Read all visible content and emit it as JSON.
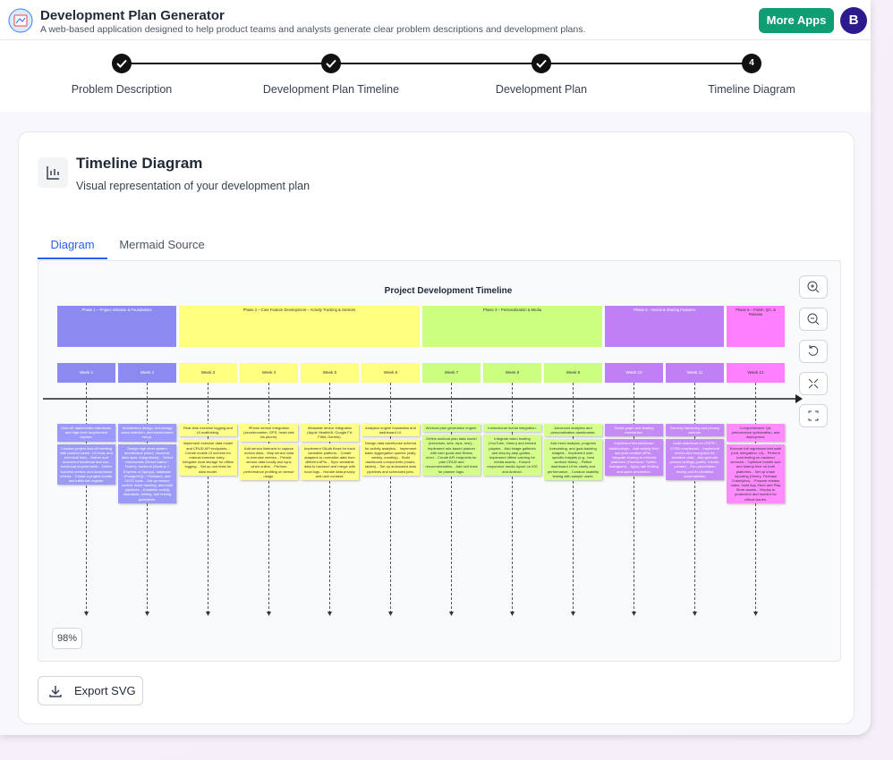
{
  "header": {
    "title": "Development Plan Generator",
    "subtitle": "A web-based application designed to help product teams and analysts generate clear problem descriptions and development plans.",
    "button": "More Apps",
    "avatar": "B"
  },
  "steps": [
    {
      "label": "Problem Description"
    },
    {
      "label": "Development Plan Timeline"
    },
    {
      "label": "Development Plan"
    },
    {
      "number": "4",
      "label": "Timeline Diagram"
    }
  ],
  "card": {
    "title": "Timeline Diagram",
    "subtitle": "Visual representation of your development plan",
    "tabs": [
      "Diagram",
      "Mermaid Source"
    ],
    "zoom": "98%",
    "export": "Export SVG"
  },
  "diagram": {
    "title": "Project Development Timeline",
    "phases": [
      {
        "label": "Phase 1 – Project Initiation & Foundations",
        "color": "#8a8af0",
        "card_color": "#9b9bf7",
        "text_color": "#ffffff",
        "weeks": [
          {
            "label": "Week 1",
            "tasks": [
              "Kick-off, stakeholder interviews, and high-level requirement capture.",
              "Conduct project kick-off meeting with product owner, UX lead, and technical lead... Gather and document functional and non-functional requirements... Define success metrics and acceptance criteria... Create a project charter and initial risk register."
            ]
          },
          {
            "label": "Week 2",
            "tasks": [
              "Architecture design, technology stack selection, and environment setup.",
              "Design high-level system architecture (client, backend, data layer, integrations)... Select frameworks (React Native / Flutter), backend (Node.js + Express or Django), database (PostgreSQL / Firebase), and CI/CD tools... Set up version control, issue tracking, and build pipelines... Establish coding standards, testing, and testing guidelines."
            ]
          }
        ]
      },
      {
        "label": "Phase 2 – Core Feature Development – Activity Tracking & Sensors",
        "color": "#ffff80",
        "card_color": "#ffff88",
        "text_color": "#333333",
        "weeks": [
          {
            "label": "Week 3",
            "tasks": [
              "Real-time exercise logging and UI scaffolding.",
              "Implement exercise data model and CRUD API endpoints... Create mobile UI screens for manual exercise entry... Integrate local storage for offline logging... Set up unit tests for data model."
            ]
          },
          {
            "label": "Week 4",
            "tasks": [
              "iPhone sensor integration (accelerometer, GPS, heart-rate via phone).",
              "Add sensor listeners to capture motion data... Map sensor data to exercise metrics... Persist sensor data locally and sync when online... Perform performance profiling on sensor usage."
            ]
          },
          {
            "label": "Week 5",
            "tasks": [
              "Wearable device integration (Apple HealthKit, Google Fit, Fitbit, Garmin).",
              "Implement OAuth flows for each wearable platform... Create adapters to normalize data from different APIs... Sync wearable data to backend and merge with local logs... Handle data privacy and user consent."
            ]
          },
          {
            "label": "Week 6",
            "tasks": [
              "Analytics engine foundation and dashboard UI.",
              "Design data warehouse schema for activity analytics... Implement basic aggregation queries (daily, weekly, monthly)... Build dashboard components (charts, tables)... Set up automated data pipelines and scheduled jobs."
            ]
          }
        ]
      },
      {
        "label": "Phase 3 – Personalization & Media",
        "color": "#ccff80",
        "card_color": "#d4ff8c",
        "text_color": "#333333",
        "weeks": [
          {
            "label": "Week 7",
            "tasks": [
              "Workout plan generation engine.",
              "Define workout plan data model (exercises, sets, reps, rest)... Implement rule-based planner with user goals and fitness level... Create API endpoints for plan CRUD and recommendation... Add unit tests for planner logic."
            ]
          },
          {
            "label": "Week 8",
            "tasks": [
              "Instructional media integration.",
              "Integrate video hosting (YouTube, Vimeo) and embed players... Add image galleries and step-by-step guides... Implement offline caching for media assets... Ensure responsive media layout on iOS and Android."
            ]
          },
          {
            "label": "Week 9",
            "tasks": [
              "Advanced analytics and personalization dashboards.",
              "Add trend analysis, progress forecasting, and goal-tracking widgets... Implement user-specific insights (e.g., best workout times)... Refine dashboard UI for clarity and performance... Conduct usability testing with sample users."
            ]
          }
        ]
      },
      {
        "label": "Phase 4 – Social & Sharing Features",
        "color": "#c080f5",
        "card_color": "#c68af7",
        "text_color": "#ffffff",
        "weeks": [
          {
            "label": "Week 10",
            "tasks": [
              "Social graph and sharing mechanics.",
              "Implement friend/follower relationships... Add activity feed and post creation APIs... Integrate sharing to external platforms (Facebook, Twitter, Instagram)... Apply rate limiting and spam prevention."
            ]
          },
          {
            "label": "Week 11",
            "tasks": [
              "Security hardening and privacy controls.",
              "Audit data flows for GDPR / CCPA compliance... Implement end-to-end encryption for sensitive data... Add granular privacy settings (public, friends, private)... Run penetration testing and fix identified vulnerabilities."
            ]
          }
        ]
      },
      {
        "label": "Phase 5 – Polish, QA, & Release",
        "color": "#ff80ff",
        "card_color": "#ff8cff",
        "text_color": "#333333",
        "weeks": [
          {
            "label": "Week 12",
            "tasks": [
              "Comprehensive QA, performance optimization, and deployment.",
              "Execute full regression test suite (unit, integration, UI)... Perform load testing on backend services... Optimize bundle size and startup time on both platforms... Set up crash reporting (Sentry, Firebase Crashlytics)... Prepare release notes, build App Store and Play Store assets... Deploy to production and monitor for critical issues."
            ]
          }
        ]
      }
    ]
  }
}
